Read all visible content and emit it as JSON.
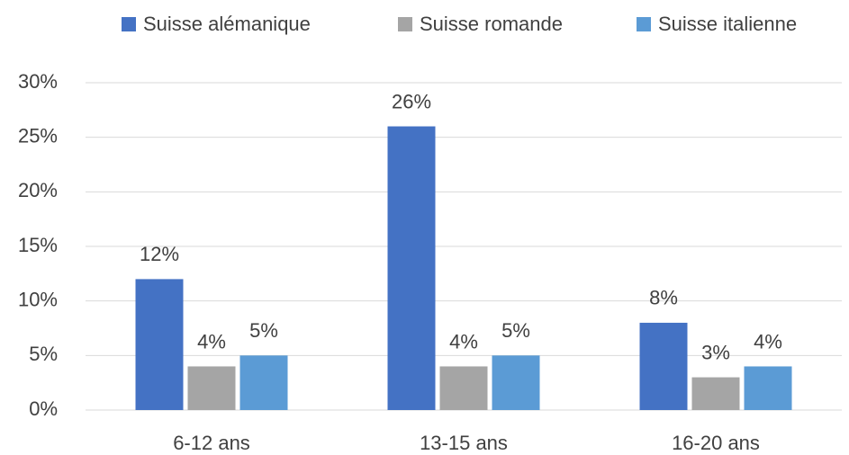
{
  "chart_data": {
    "type": "bar",
    "categories": [
      "6-12 ans",
      "13-15 ans",
      "16-20 ans"
    ],
    "series": [
      {
        "name": "Suisse alémanique",
        "color": "#4472c4",
        "values": [
          12,
          26,
          8
        ],
        "value_labels": [
          "12%",
          "26%",
          "8%"
        ]
      },
      {
        "name": "Suisse romande",
        "color": "#a5a5a5",
        "values": [
          4,
          4,
          3
        ],
        "value_labels": [
          "4%",
          "4%",
          "3%"
        ]
      },
      {
        "name": "Suisse italienne",
        "color": "#5b9bd5",
        "values": [
          5,
          5,
          4
        ],
        "value_labels": [
          "5%",
          "5%",
          "4%"
        ]
      }
    ],
    "ylim": [
      0,
      30
    ],
    "yticks": [
      {
        "value": 0,
        "label": "0%"
      },
      {
        "value": 5,
        "label": "5%"
      },
      {
        "value": 10,
        "label": "10%"
      },
      {
        "value": 15,
        "label": "15%"
      },
      {
        "value": 20,
        "label": "20%"
      },
      {
        "value": 25,
        "label": "25%"
      },
      {
        "value": 30,
        "label": "30%"
      }
    ],
    "grid": true,
    "legend": "top"
  }
}
